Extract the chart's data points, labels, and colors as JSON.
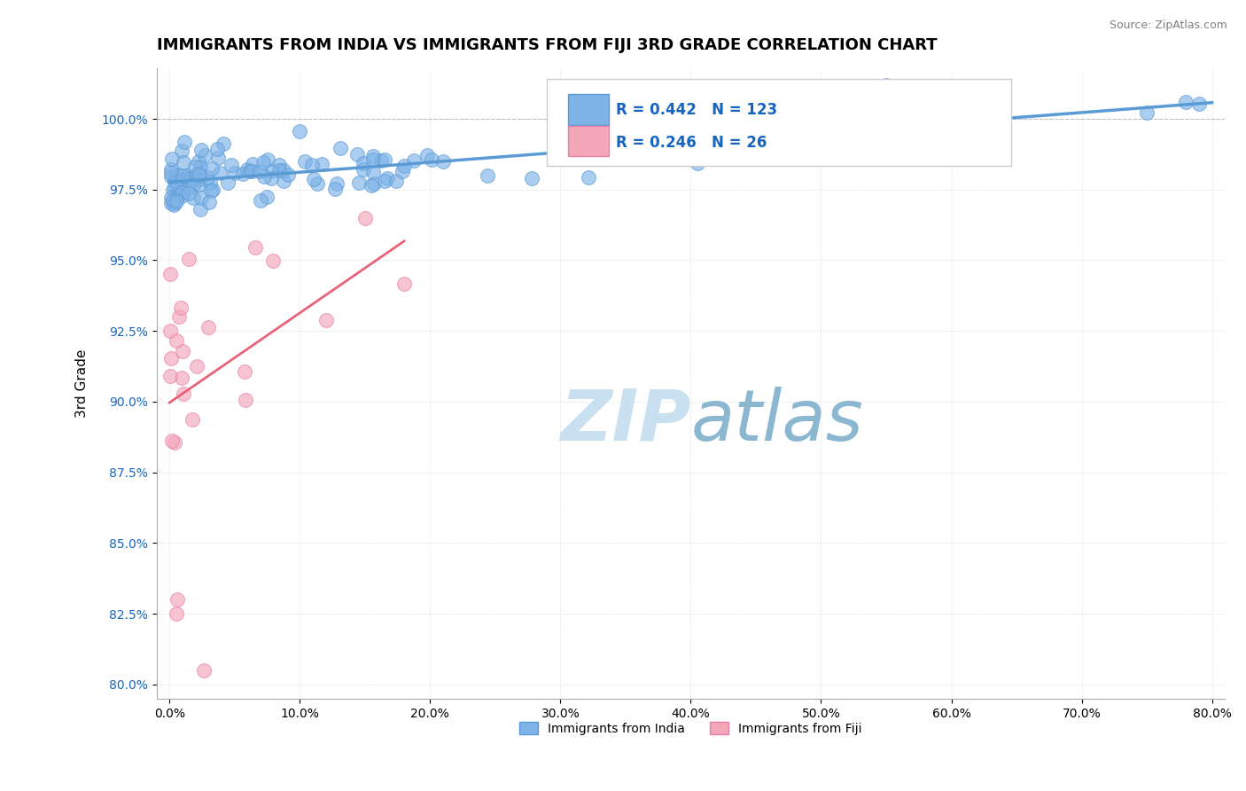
{
  "title": "IMMIGRANTS FROM INDIA VS IMMIGRANTS FROM FIJI 3RD GRADE CORRELATION CHART",
  "source_text": "Source: ZipAtlas.com",
  "xlabel": "",
  "ylabel": "3rd Grade",
  "xlim": [
    -1.0,
    81.0
  ],
  "ylim": [
    79.5,
    101.8
  ],
  "yticks": [
    80.0,
    82.5,
    85.0,
    87.5,
    90.0,
    92.5,
    95.0,
    97.5,
    100.0
  ],
  "xticks": [
    0.0,
    10.0,
    20.0,
    30.0,
    40.0,
    50.0,
    60.0,
    70.0,
    80.0
  ],
  "india_R": 0.442,
  "india_N": 123,
  "fiji_R": 0.246,
  "fiji_N": 26,
  "india_color": "#7EB3E8",
  "fiji_color": "#F4A7B9",
  "india_edge_color": "#5A9BD5",
  "fiji_edge_color": "#E87FAA",
  "trend_india_color": "#5A9BD5",
  "trend_fiji_color": "#E8637A",
  "watermark_zip_color": "#C8E0F0",
  "watermark_atlas_color": "#8BB8D0",
  "background_color": "#FFFFFF",
  "title_fontsize": 13,
  "label_fontsize": 11
}
